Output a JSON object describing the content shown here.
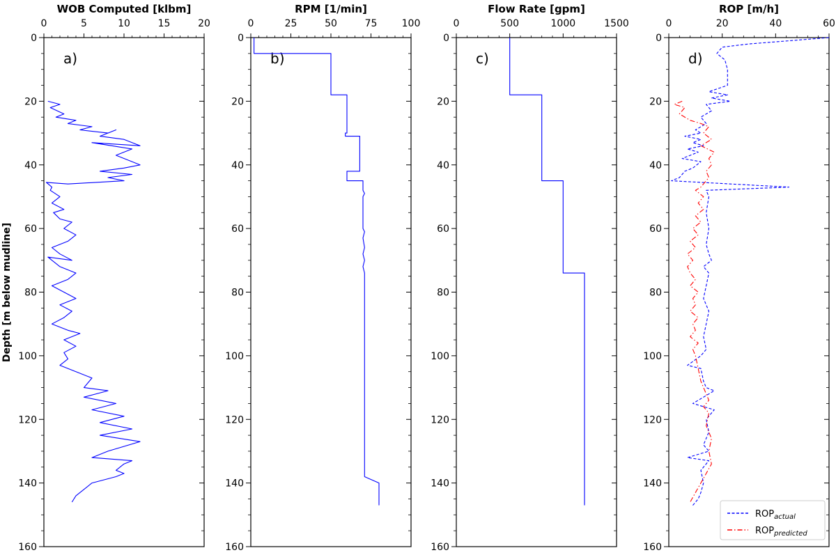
{
  "figure": {
    "ylabel": "Depth [m below mudline]"
  },
  "chart_data": [
    {
      "type": "line",
      "panel_label": "a)",
      "title": "WOB Computed [klbm]",
      "xlim": [
        0,
        20
      ],
      "ylim": [
        160,
        0
      ],
      "x_ticks": [
        "0",
        "5",
        "10",
        "15",
        "20"
      ],
      "y_ticks": [
        "0",
        "20",
        "40",
        "60",
        "80",
        "100",
        "120",
        "140",
        "160"
      ],
      "series": [
        {
          "color": "#0000ff",
          "style": "solid",
          "points": [
            [
              0.5,
              20
            ],
            [
              2,
              21
            ],
            [
              0.8,
              22
            ],
            [
              2.5,
              24
            ],
            [
              1.5,
              25
            ],
            [
              4,
              26
            ],
            [
              3,
              27
            ],
            [
              6,
              28
            ],
            [
              4.5,
              29
            ],
            [
              8,
              30
            ],
            [
              9,
              29
            ],
            [
              7,
              31
            ],
            [
              10,
              32
            ],
            [
              12,
              34
            ],
            [
              6,
              33
            ],
            [
              11,
              35
            ],
            [
              9,
              37
            ],
            [
              12,
              40
            ],
            [
              10,
              41
            ],
            [
              7,
              42
            ],
            [
              11,
              43
            ],
            [
              8,
              44
            ],
            [
              10,
              45
            ],
            [
              3,
              46
            ],
            [
              0.3,
              45.5
            ],
            [
              1,
              47
            ],
            [
              0.8,
              48
            ],
            [
              2,
              50
            ],
            [
              1,
              52
            ],
            [
              2.5,
              54
            ],
            [
              1.2,
              55
            ],
            [
              2,
              57
            ],
            [
              3.5,
              58
            ],
            [
              2.5,
              60
            ],
            [
              4,
              62
            ],
            [
              3,
              64
            ],
            [
              1,
              66
            ],
            [
              2,
              68
            ],
            [
              3.5,
              70
            ],
            [
              0.5,
              69
            ],
            [
              2,
              72
            ],
            [
              4,
              74
            ],
            [
              3,
              76
            ],
            [
              1,
              78
            ],
            [
              2.5,
              80
            ],
            [
              4,
              82
            ],
            [
              2,
              84
            ],
            [
              3.5,
              86
            ],
            [
              2.5,
              88
            ],
            [
              1,
              90
            ],
            [
              3,
              92
            ],
            [
              4.5,
              93
            ],
            [
              2.5,
              95
            ],
            [
              4,
              97
            ],
            [
              2.5,
              99
            ],
            [
              3,
              101
            ],
            [
              2,
              103
            ],
            [
              4,
              105
            ],
            [
              6,
              107
            ],
            [
              5,
              110
            ],
            [
              8,
              111
            ],
            [
              5,
              113
            ],
            [
              9,
              115
            ],
            [
              6,
              117
            ],
            [
              10,
              119
            ],
            [
              7,
              121
            ],
            [
              11,
              123
            ],
            [
              7,
              125
            ],
            [
              12,
              127
            ],
            [
              8,
              130
            ],
            [
              6,
              132
            ],
            [
              11,
              133
            ],
            [
              10,
              134
            ],
            [
              9,
              136
            ],
            [
              10,
              137
            ],
            [
              9,
              138
            ],
            [
              6,
              140
            ],
            [
              5,
              142
            ],
            [
              4,
              144
            ],
            [
              3.5,
              146
            ]
          ]
        }
      ]
    },
    {
      "type": "line",
      "panel_label": "b)",
      "title": "RPM [1/min]",
      "xlim": [
        0,
        100
      ],
      "ylim": [
        160,
        0
      ],
      "x_ticks": [
        "0",
        "25",
        "50",
        "75",
        "100"
      ],
      "y_ticks": [
        "0",
        "20",
        "40",
        "60",
        "80",
        "100",
        "120",
        "140",
        "160"
      ],
      "series": [
        {
          "color": "#0000ff",
          "style": "solid",
          "points": [
            [
              2,
              0
            ],
            [
              2,
              5
            ],
            [
              50,
              5
            ],
            [
              50,
              18
            ],
            [
              60,
              18
            ],
            [
              60,
              30
            ],
            [
              59,
              30
            ],
            [
              59,
              31
            ],
            [
              68,
              31
            ],
            [
              68,
              42
            ],
            [
              60,
              42
            ],
            [
              60,
              45
            ],
            [
              70,
              45
            ],
            [
              70,
              48
            ],
            [
              71,
              49
            ],
            [
              70,
              50
            ],
            [
              70,
              60
            ],
            [
              71,
              61
            ],
            [
              70,
              63
            ],
            [
              71,
              66
            ],
            [
              70,
              68
            ],
            [
              71,
              70
            ],
            [
              70,
              72
            ],
            [
              71,
              74
            ],
            [
              71,
              138
            ],
            [
              80,
              140
            ],
            [
              80,
              147
            ]
          ]
        }
      ]
    },
    {
      "type": "line",
      "panel_label": "c)",
      "title": "Flow Rate [gpm]",
      "xlim": [
        0,
        1500
      ],
      "ylim": [
        160,
        0
      ],
      "x_ticks": [
        "0",
        "500",
        "1000",
        "1500"
      ],
      "y_ticks": [
        "0",
        "20",
        "40",
        "60",
        "80",
        "100",
        "120",
        "140",
        "160"
      ],
      "series": [
        {
          "color": "#0000ff",
          "style": "solid",
          "points": [
            [
              500,
              0
            ],
            [
              500,
              18
            ],
            [
              800,
              18
            ],
            [
              800,
              45
            ],
            [
              1000,
              45
            ],
            [
              1000,
              74
            ],
            [
              1200,
              74
            ],
            [
              1200,
              147
            ]
          ]
        }
      ]
    },
    {
      "type": "line",
      "panel_label": "d)",
      "title": "ROP [m/h]",
      "xlim": [
        0,
        60
      ],
      "ylim": [
        160,
        0
      ],
      "x_ticks": [
        "0",
        "20",
        "40",
        "60"
      ],
      "y_ticks": [
        "0",
        "20",
        "40",
        "60",
        "80",
        "100",
        "120",
        "140",
        "160"
      ],
      "legend_position": "lower-right",
      "series": [
        {
          "name": "ROP",
          "name_sub": "actual",
          "color": "#0000ff",
          "style": "dashed",
          "points": [
            [
              60,
              0
            ],
            [
              30,
              2
            ],
            [
              20,
              3
            ],
            [
              18,
              5
            ],
            [
              21,
              7
            ],
            [
              22,
              10
            ],
            [
              22,
              15
            ],
            [
              15,
              17
            ],
            [
              22,
              18
            ],
            [
              16,
              19
            ],
            [
              23,
              20
            ],
            [
              14,
              21
            ],
            [
              16,
              23
            ],
            [
              12,
              25
            ],
            [
              14,
              27
            ],
            [
              10,
              29
            ],
            [
              12,
              30
            ],
            [
              6,
              31
            ],
            [
              12,
              32
            ],
            [
              9,
              33
            ],
            [
              13,
              34
            ],
            [
              7,
              35
            ],
            [
              11,
              36
            ],
            [
              5,
              38
            ],
            [
              12,
              39
            ],
            [
              9,
              41
            ],
            [
              6,
              42
            ],
            [
              4,
              44
            ],
            [
              1,
              45
            ],
            [
              45,
              47
            ],
            [
              14,
              48
            ],
            [
              15,
              50
            ],
            [
              14,
              55
            ],
            [
              15,
              60
            ],
            [
              14,
              65
            ],
            [
              15,
              68
            ],
            [
              16,
              70
            ],
            [
              13,
              72
            ],
            [
              15,
              74
            ],
            [
              14,
              78
            ],
            [
              13,
              82
            ],
            [
              15,
              86
            ],
            [
              14,
              90
            ],
            [
              13,
              94
            ],
            [
              14,
              98
            ],
            [
              12,
              100
            ],
            [
              7,
              103
            ],
            [
              12,
              104
            ],
            [
              13,
              108
            ],
            [
              14,
              110
            ],
            [
              17,
              111
            ],
            [
              15,
              112
            ],
            [
              9,
              115
            ],
            [
              17,
              117
            ],
            [
              14,
              120
            ],
            [
              15,
              124
            ],
            [
              13,
              128
            ],
            [
              15,
              130
            ],
            [
              7,
              132
            ],
            [
              15,
              133
            ],
            [
              12,
              136
            ],
            [
              13,
              140
            ],
            [
              12,
              143
            ],
            [
              11,
              145
            ],
            [
              9,
              147
            ]
          ]
        },
        {
          "name": "ROP",
          "name_sub": "predicted",
          "color": "#ff0000",
          "style": "dashdot",
          "points": [
            [
              5,
              20
            ],
            [
              2,
              21
            ],
            [
              6,
              22
            ],
            [
              4,
              24
            ],
            [
              8,
              26
            ],
            [
              12,
              27
            ],
            [
              15,
              28
            ],
            [
              13,
              30
            ],
            [
              16,
              32
            ],
            [
              12,
              34
            ],
            [
              17,
              36
            ],
            [
              15,
              38
            ],
            [
              16,
              40
            ],
            [
              14,
              42
            ],
            [
              15,
              44
            ],
            [
              13,
              46
            ],
            [
              12,
              47
            ],
            [
              10,
              48
            ],
            [
              13,
              50
            ],
            [
              11,
              52
            ],
            [
              13,
              54
            ],
            [
              10,
              56
            ],
            [
              12,
              58
            ],
            [
              9,
              60
            ],
            [
              11,
              62
            ],
            [
              8,
              64
            ],
            [
              10,
              66
            ],
            [
              7,
              68
            ],
            [
              9,
              70
            ],
            [
              7,
              72
            ],
            [
              8,
              74
            ],
            [
              10,
              76
            ],
            [
              8,
              78
            ],
            [
              11,
              80
            ],
            [
              9,
              82
            ],
            [
              10,
              84
            ],
            [
              8,
              86
            ],
            [
              11,
              88
            ],
            [
              9,
              90
            ],
            [
              10,
              92
            ],
            [
              8,
              94
            ],
            [
              11,
              96
            ],
            [
              9,
              98
            ],
            [
              10,
              100
            ],
            [
              11,
              104
            ],
            [
              12,
              108
            ],
            [
              14,
              112
            ],
            [
              15,
              114
            ],
            [
              13,
              116
            ],
            [
              15,
              118
            ],
            [
              14,
              122
            ],
            [
              16,
              126
            ],
            [
              15,
              130
            ],
            [
              16,
              134
            ],
            [
              14,
              137
            ],
            [
              12,
              140
            ],
            [
              10,
              143
            ],
            [
              8,
              146
            ]
          ]
        }
      ]
    }
  ]
}
